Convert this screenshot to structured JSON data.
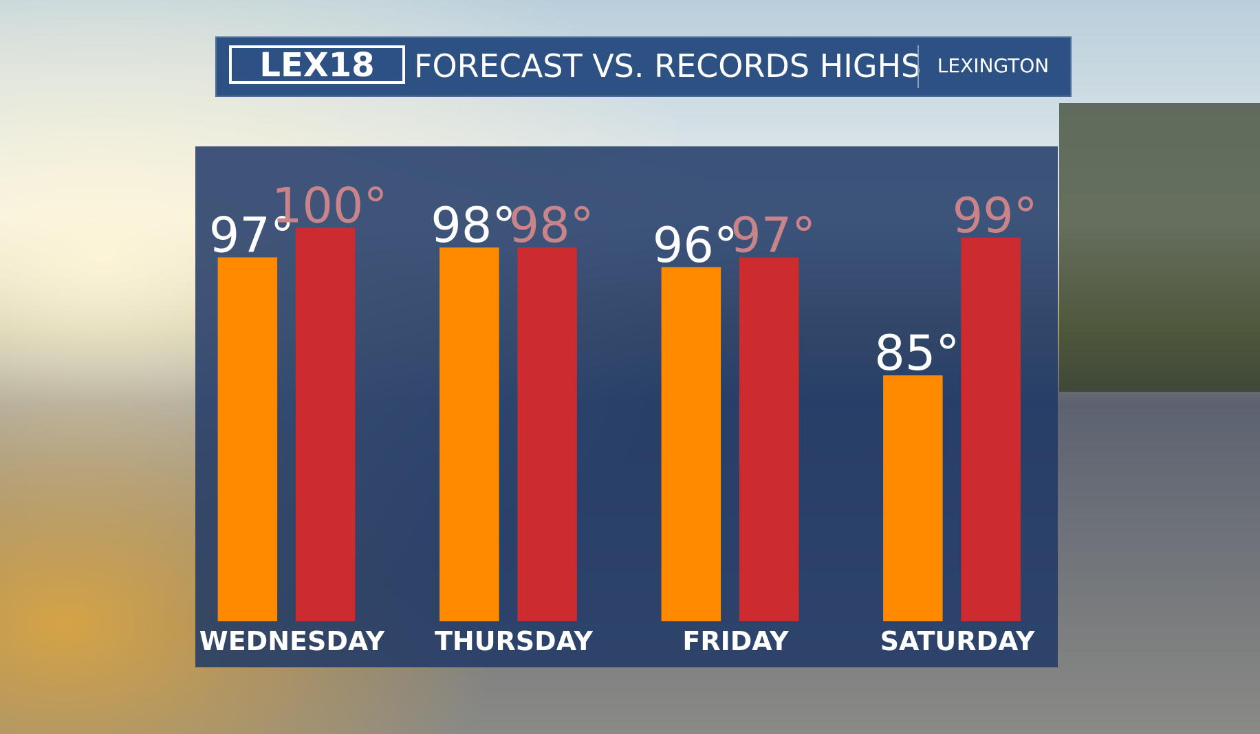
{
  "header": {
    "logo": "LEX18",
    "location": "LEXINGTON"
  },
  "chart_data": {
    "type": "bar",
    "title": "FORECAST VS. RECORDS HIGHS",
    "categories": [
      "WEDNESDAY",
      "THURSDAY",
      "FRIDAY",
      "SATURDAY"
    ],
    "series": [
      {
        "color": "#ff8a00",
        "label_color": "#ffffff",
        "values": [
          97,
          98,
          96,
          85
        ],
        "value_labels": [
          "97°",
          "98°",
          "96°",
          "85°"
        ]
      },
      {
        "color": "#cc2b2f",
        "label_color": "#c98489",
        "values": [
          100,
          98,
          97,
          99
        ],
        "value_labels": [
          "100°",
          "98°",
          "97°",
          "99°"
        ]
      }
    ],
    "ylim": [
      60,
      108
    ]
  }
}
